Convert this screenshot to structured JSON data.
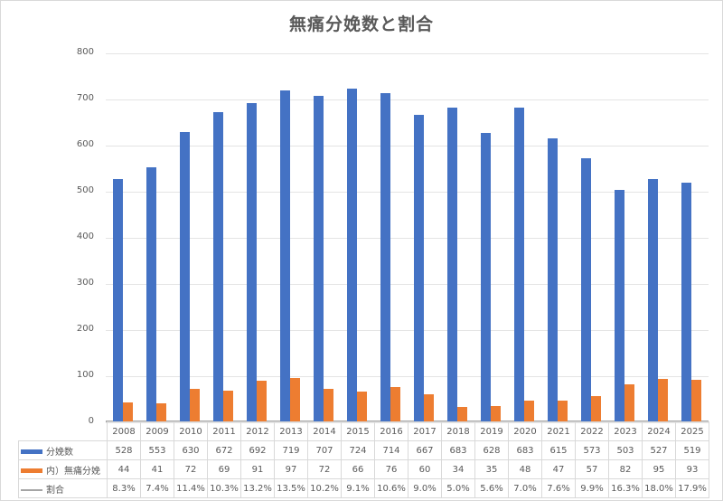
{
  "chart_data": {
    "type": "bar",
    "title": "無痛分娩数と割合",
    "xlabel": "",
    "ylabel": "",
    "ylim": [
      0,
      800
    ],
    "yticks": [
      0,
      100,
      200,
      300,
      400,
      500,
      600,
      700,
      800
    ],
    "grid": true,
    "legend_position": "data-table",
    "categories": [
      "2008",
      "2009",
      "2010",
      "2011",
      "2012",
      "2013",
      "2014",
      "2015",
      "2016",
      "2017",
      "2018",
      "2019",
      "2020",
      "2021",
      "2022",
      "2023",
      "2024",
      "2025"
    ],
    "series": [
      {
        "name": "分娩数",
        "type": "bar",
        "color": "#4472c4",
        "values": [
          528,
          553,
          630,
          672,
          692,
          719,
          707,
          724,
          714,
          667,
          683,
          628,
          683,
          615,
          573,
          503,
          527,
          519
        ]
      },
      {
        "name": "内）無痛分娩",
        "type": "bar",
        "color": "#ed7d31",
        "values": [
          44,
          41,
          72,
          69,
          91,
          97,
          72,
          66,
          76,
          60,
          34,
          35,
          48,
          47,
          57,
          82,
          95,
          93
        ]
      },
      {
        "name": "割合",
        "type": "line",
        "color": "#a5a5a5",
        "values": [
          "8.3%",
          "7.4%",
          "11.4%",
          "10.3%",
          "13.2%",
          "13.5%",
          "10.2%",
          "9.1%",
          "10.6%",
          "9.0%",
          "5.0%",
          "5.6%",
          "7.0%",
          "7.6%",
          "9.9%",
          "16.3%",
          "18.0%",
          "17.9%"
        ]
      }
    ]
  }
}
